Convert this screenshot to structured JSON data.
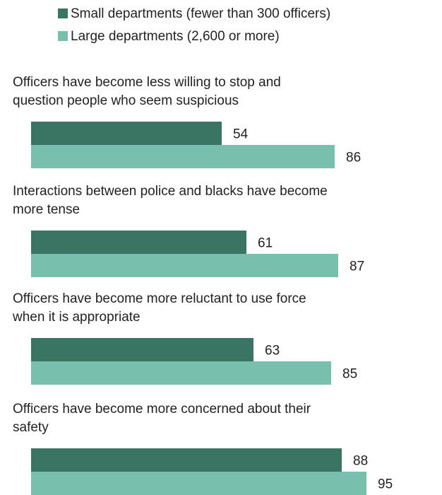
{
  "chart_data": {
    "type": "bar",
    "orientation": "horizontal",
    "categories": [
      "Officers have become less willing to stop and question people who seem suspicious",
      "Interactions between police and blacks have become more tense",
      "Officers have become more reluctant to use force when it is appropriate",
      "Officers have become more concerned about their safety"
    ],
    "category_lines": [
      [
        "Officers have become less willing to stop and",
        "question people who seem suspicious"
      ],
      [
        "Interactions between police and blacks have become",
        "more tense"
      ],
      [
        "Officers have become more reluctant to use force",
        "when it is appropriate"
      ],
      [
        "Officers have become more concerned about their",
        "safety"
      ]
    ],
    "series": [
      {
        "name": "Small departments (fewer than 300 officers)",
        "values": [
          54,
          61,
          63,
          88
        ],
        "color": "#3a7564"
      },
      {
        "name": "Large departments (2,600 or more)",
        "values": [
          86,
          87,
          85,
          95
        ],
        "color": "#78c0ad"
      }
    ],
    "xlim": [
      0,
      100
    ],
    "grid": false,
    "legend_position": "top"
  }
}
